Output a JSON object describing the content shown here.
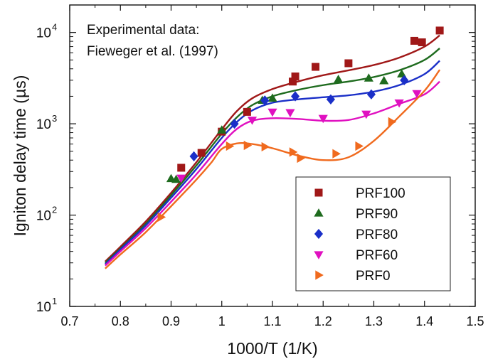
{
  "chart_data": {
    "type": "scatter",
    "title": "",
    "xlabel": "1000/T (1/K)",
    "ylabel": "Igniton delay time (µs)",
    "xlim": [
      0.7,
      1.5
    ],
    "ylim": [
      10,
      20000
    ],
    "yscale": "log",
    "x_ticks": [
      "0.7",
      "0.8",
      "0.9",
      "1",
      "1.1",
      "1.2",
      "1.3",
      "1.4",
      "1.5"
    ],
    "y_ticks": [
      {
        "base": "10",
        "exp": "1"
      },
      {
        "base": "10",
        "exp": "2"
      },
      {
        "base": "10",
        "exp": "3"
      },
      {
        "base": "10",
        "exp": "4"
      }
    ],
    "annotation": [
      "Experimental data:",
      "Fieweger et al. (1997)"
    ],
    "legend_position": "bottom-right",
    "series": [
      {
        "name": "PRF100",
        "color": "#a01818",
        "marker": "square",
        "points": [
          [
            0.92,
            330
          ],
          [
            0.96,
            480
          ],
          [
            1.0,
            820
          ],
          [
            1.05,
            1350
          ],
          [
            1.14,
            2900
          ],
          [
            1.145,
            3300
          ],
          [
            1.185,
            4200
          ],
          [
            1.25,
            4600
          ],
          [
            1.38,
            8100
          ],
          [
            1.395,
            7800
          ],
          [
            1.43,
            10500
          ]
        ],
        "model": [
          [
            0.77,
            31
          ],
          [
            0.8,
            45
          ],
          [
            0.85,
            85
          ],
          [
            0.9,
            175
          ],
          [
            0.95,
            380
          ],
          [
            1.0,
            870
          ],
          [
            1.03,
            1380
          ],
          [
            1.06,
            1900
          ],
          [
            1.1,
            2400
          ],
          [
            1.15,
            2900
          ],
          [
            1.2,
            3400
          ],
          [
            1.25,
            3850
          ],
          [
            1.3,
            4400
          ],
          [
            1.35,
            5300
          ],
          [
            1.4,
            7000
          ],
          [
            1.43,
            9300
          ]
        ]
      },
      {
        "name": "PRF90",
        "color": "#1e6b1e",
        "marker": "triangle-up",
        "points": [
          [
            0.9,
            250
          ],
          [
            0.91,
            245
          ],
          [
            1.0,
            850
          ],
          [
            1.08,
            1800
          ],
          [
            1.1,
            1900
          ],
          [
            1.23,
            3050
          ],
          [
            1.29,
            3150
          ],
          [
            1.32,
            2950
          ],
          [
            1.355,
            3500
          ]
        ],
        "model": [
          [
            0.77,
            30
          ],
          [
            0.8,
            43
          ],
          [
            0.85,
            80
          ],
          [
            0.9,
            165
          ],
          [
            0.95,
            350
          ],
          [
            1.0,
            780
          ],
          [
            1.03,
            1180
          ],
          [
            1.06,
            1600
          ],
          [
            1.1,
            2000
          ],
          [
            1.15,
            2350
          ],
          [
            1.2,
            2650
          ],
          [
            1.25,
            2900
          ],
          [
            1.3,
            3250
          ],
          [
            1.35,
            3850
          ],
          [
            1.4,
            5000
          ],
          [
            1.43,
            6700
          ]
        ]
      },
      {
        "name": "PRF80",
        "color": "#1a2fc8",
        "marker": "diamond",
        "points": [
          [
            0.945,
            440
          ],
          [
            1.025,
            1000
          ],
          [
            1.085,
            1800
          ],
          [
            1.145,
            2000
          ],
          [
            1.215,
            1850
          ],
          [
            1.295,
            2100
          ],
          [
            1.36,
            3000
          ]
        ],
        "model": [
          [
            0.77,
            29
          ],
          [
            0.8,
            42
          ],
          [
            0.85,
            77
          ],
          [
            0.9,
            155
          ],
          [
            0.95,
            320
          ],
          [
            1.0,
            700
          ],
          [
            1.03,
            1050
          ],
          [
            1.06,
            1400
          ],
          [
            1.1,
            1700
          ],
          [
            1.15,
            1850
          ],
          [
            1.2,
            1950
          ],
          [
            1.25,
            2050
          ],
          [
            1.3,
            2250
          ],
          [
            1.35,
            2650
          ],
          [
            1.4,
            3500
          ],
          [
            1.43,
            4900
          ]
        ]
      },
      {
        "name": "PRF60",
        "color": "#e010c0",
        "marker": "triangle-down",
        "points": [
          [
            0.92,
            255
          ],
          [
            1.06,
            1100
          ],
          [
            1.1,
            1350
          ],
          [
            1.135,
            1330
          ],
          [
            1.2,
            1150
          ],
          [
            1.285,
            1280
          ],
          [
            1.35,
            1700
          ],
          [
            1.385,
            2150
          ]
        ],
        "model": [
          [
            0.77,
            28
          ],
          [
            0.8,
            40
          ],
          [
            0.85,
            72
          ],
          [
            0.9,
            140
          ],
          [
            0.95,
            280
          ],
          [
            1.0,
            600
          ],
          [
            1.03,
            880
          ],
          [
            1.06,
            1080
          ],
          [
            1.1,
            1150
          ],
          [
            1.15,
            1130
          ],
          [
            1.2,
            1080
          ],
          [
            1.25,
            1100
          ],
          [
            1.3,
            1300
          ],
          [
            1.35,
            1650
          ],
          [
            1.4,
            2100
          ],
          [
            1.43,
            2900
          ]
        ]
      },
      {
        "name": "PRF0",
        "color": "#f06a1e",
        "marker": "triangle-right",
        "points": [
          [
            0.88,
            95
          ],
          [
            1.015,
            570
          ],
          [
            1.05,
            580
          ],
          [
            1.085,
            560
          ],
          [
            1.14,
            490
          ],
          [
            1.155,
            420
          ],
          [
            1.225,
            470
          ],
          [
            1.27,
            570
          ],
          [
            1.335,
            1050
          ]
        ],
        "model": [
          [
            0.77,
            26
          ],
          [
            0.8,
            37
          ],
          [
            0.85,
            65
          ],
          [
            0.9,
            125
          ],
          [
            0.95,
            245
          ],
          [
            0.98,
            380
          ],
          [
            1.0,
            530
          ],
          [
            1.03,
            610
          ],
          [
            1.06,
            600
          ],
          [
            1.1,
            540
          ],
          [
            1.15,
            450
          ],
          [
            1.2,
            400
          ],
          [
            1.25,
            430
          ],
          [
            1.3,
            650
          ],
          [
            1.35,
            1200
          ],
          [
            1.4,
            2300
          ],
          [
            1.43,
            3900
          ]
        ]
      }
    ]
  }
}
